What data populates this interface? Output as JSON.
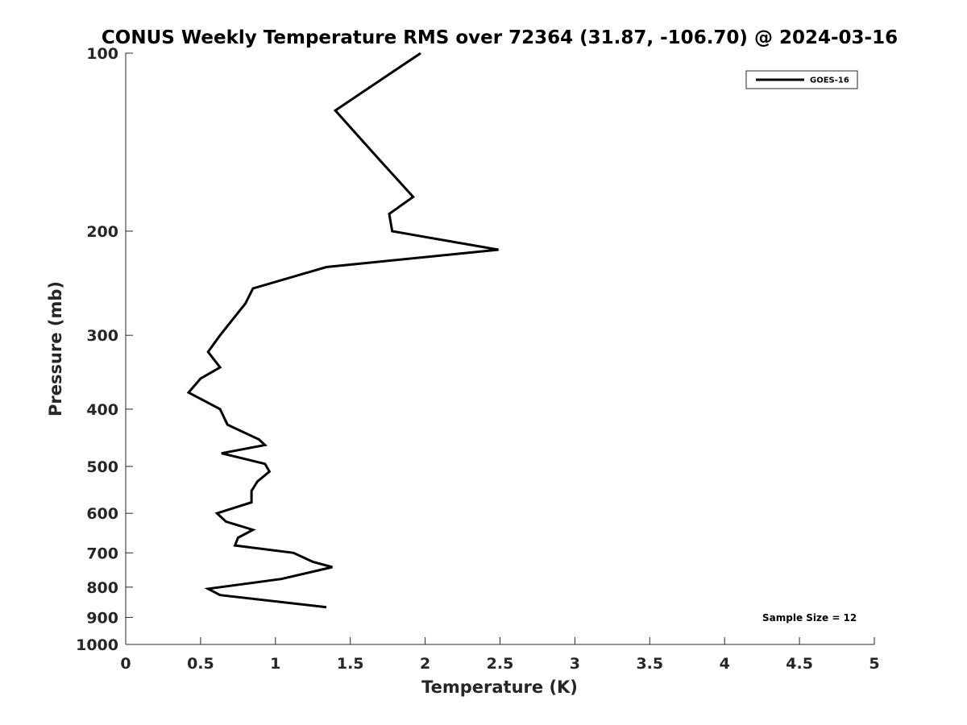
{
  "chart_data": {
    "type": "line",
    "title": "CONUS Weekly Temperature RMS over 72364 (31.87, -106.70) @ 2024-03-16",
    "xlabel": "Temperature (K)",
    "ylabel": "Pressure (mb)",
    "xlim": [
      0,
      5
    ],
    "ylim": [
      1000,
      100
    ],
    "y_scale": "log",
    "y_reversed": true,
    "grid": false,
    "x_ticks": [
      0,
      0.5,
      1,
      1.5,
      2,
      2.5,
      3,
      3.5,
      4,
      4.5,
      5
    ],
    "x_tick_labels": [
      "0",
      "0.5",
      "1",
      "1.5",
      "2",
      "2.5",
      "3",
      "3.5",
      "4",
      "4.5",
      "5"
    ],
    "y_ticks": [
      100,
      200,
      300,
      400,
      500,
      600,
      700,
      800,
      900,
      1000
    ],
    "y_tick_labels": [
      "100",
      "200",
      "300",
      "400",
      "500",
      "600",
      "700",
      "800",
      "900",
      "1000"
    ],
    "legend_position": "top-right",
    "annotation": "Sample Size = 12",
    "series": [
      {
        "name": "GOES-16",
        "color": "#000000",
        "points": [
          [
            1.97,
            100
          ],
          [
            1.4,
            125
          ],
          [
            1.68,
            150
          ],
          [
            1.92,
            175
          ],
          [
            1.76,
            187
          ],
          [
            1.78,
            200
          ],
          [
            2.49,
            215
          ],
          [
            1.34,
            230
          ],
          [
            0.85,
            250
          ],
          [
            0.8,
            265
          ],
          [
            0.63,
            300
          ],
          [
            0.55,
            320
          ],
          [
            0.63,
            340
          ],
          [
            0.5,
            355
          ],
          [
            0.42,
            375
          ],
          [
            0.63,
            400
          ],
          [
            0.68,
            425
          ],
          [
            0.89,
            450
          ],
          [
            0.93,
            460
          ],
          [
            0.64,
            475
          ],
          [
            0.93,
            495
          ],
          [
            0.96,
            510
          ],
          [
            0.88,
            530
          ],
          [
            0.84,
            550
          ],
          [
            0.84,
            575
          ],
          [
            0.61,
            600
          ],
          [
            0.67,
            620
          ],
          [
            0.85,
            640
          ],
          [
            0.75,
            660
          ],
          [
            0.73,
            680
          ],
          [
            1.12,
            700
          ],
          [
            1.25,
            725
          ],
          [
            1.38,
            740
          ],
          [
            1.04,
            775
          ],
          [
            0.55,
            805
          ],
          [
            0.63,
            825
          ],
          [
            1.34,
            865
          ]
        ]
      }
    ]
  }
}
